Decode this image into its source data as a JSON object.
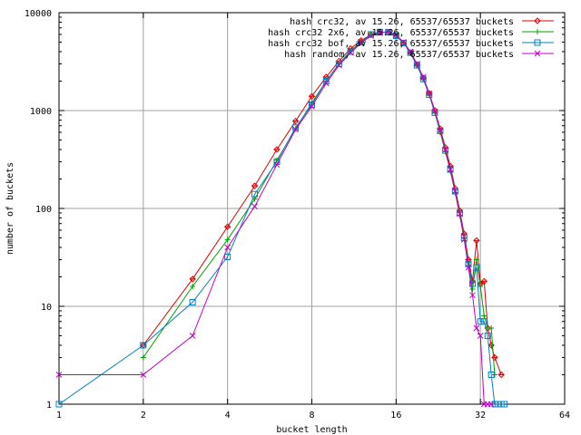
{
  "chart_data": {
    "type": "line",
    "xlabel": "bucket length",
    "ylabel": "number of buckets",
    "xscale": "log2",
    "yscale": "log10",
    "xlim": [
      1,
      64
    ],
    "ylim": [
      1,
      10000
    ],
    "grid": true,
    "legend_position": "top-right",
    "x_ticks": [
      "1",
      "2",
      "4",
      "8",
      "16",
      "32",
      "64"
    ],
    "y_ticks": [
      "1",
      "10",
      "100",
      "1000",
      "10000"
    ],
    "series": [
      {
        "name": "hash crc32, av 15.26, 65537/65537 buckets",
        "color": "#e00000",
        "marker": "plus-diamond",
        "points": [
          [
            2,
            4
          ],
          [
            3,
            19
          ],
          [
            4,
            65
          ],
          [
            5,
            170
          ],
          [
            6,
            400
          ],
          [
            7,
            780
          ],
          [
            8,
            1400
          ],
          [
            9,
            2200
          ],
          [
            10,
            3200
          ],
          [
            11,
            4300
          ],
          [
            12,
            5200
          ],
          [
            13,
            5950
          ],
          [
            14,
            6350
          ],
          [
            15,
            6300
          ],
          [
            16,
            5800
          ],
          [
            17,
            4900
          ],
          [
            18,
            3900
          ],
          [
            19,
            2950
          ],
          [
            20,
            2150
          ],
          [
            21,
            1500
          ],
          [
            22,
            1000
          ],
          [
            23,
            650
          ],
          [
            24,
            420
          ],
          [
            25,
            270
          ],
          [
            26,
            160
          ],
          [
            27,
            95
          ],
          [
            28,
            55
          ],
          [
            29,
            30
          ],
          [
            30,
            18
          ],
          [
            31,
            47
          ],
          [
            32,
            17
          ],
          [
            33,
            18
          ],
          [
            34,
            6
          ],
          [
            35,
            4
          ],
          [
            36,
            3
          ],
          [
            38,
            2
          ]
        ]
      },
      {
        "name": "hash crc32 2x6, av 15.26, 65537/65537 buckets",
        "color": "#00a000",
        "marker": "plus",
        "points": [
          [
            2,
            3
          ],
          [
            3,
            16
          ],
          [
            4,
            48
          ],
          [
            5,
            125
          ],
          [
            6,
            310
          ],
          [
            7,
            650
          ],
          [
            8,
            1200
          ],
          [
            9,
            2000
          ],
          [
            10,
            3000
          ],
          [
            11,
            4100
          ],
          [
            12,
            5000
          ],
          [
            13,
            5900
          ],
          [
            14,
            6300
          ],
          [
            15,
            6350
          ],
          [
            16,
            5850
          ],
          [
            17,
            4950
          ],
          [
            18,
            3850
          ],
          [
            19,
            2900
          ],
          [
            20,
            2100
          ],
          [
            21,
            1450
          ],
          [
            22,
            950
          ],
          [
            23,
            600
          ],
          [
            24,
            380
          ],
          [
            25,
            240
          ],
          [
            26,
            145
          ],
          [
            27,
            85
          ],
          [
            28,
            50
          ],
          [
            29,
            28
          ],
          [
            30,
            15
          ],
          [
            31,
            30
          ],
          [
            32,
            16
          ],
          [
            33,
            8
          ],
          [
            34,
            6
          ],
          [
            35,
            6
          ],
          [
            36,
            2
          ]
        ]
      },
      {
        "name": "hash crc32 bof, av 15.26, 65537/65537 buckets",
        "color": "#0080c0",
        "marker": "square",
        "points": [
          [
            1,
            1
          ],
          [
            2,
            4
          ],
          [
            3,
            11
          ],
          [
            4,
            32
          ],
          [
            5,
            140
          ],
          [
            6,
            300
          ],
          [
            7,
            670
          ],
          [
            8,
            1150
          ],
          [
            9,
            2000
          ],
          [
            10,
            3000
          ],
          [
            11,
            4000
          ],
          [
            12,
            5000
          ],
          [
            13,
            6000
          ],
          [
            14,
            6350
          ],
          [
            15,
            6300
          ],
          [
            16,
            5800
          ],
          [
            17,
            4900
          ],
          [
            18,
            3900
          ],
          [
            19,
            2900
          ],
          [
            20,
            2100
          ],
          [
            21,
            1450
          ],
          [
            22,
            950
          ],
          [
            23,
            620
          ],
          [
            24,
            390
          ],
          [
            25,
            250
          ],
          [
            26,
            150
          ],
          [
            27,
            90
          ],
          [
            28,
            50
          ],
          [
            29,
            27
          ],
          [
            30,
            17
          ],
          [
            31,
            25
          ],
          [
            32,
            7
          ],
          [
            33,
            7
          ],
          [
            34,
            5
          ],
          [
            35,
            2
          ],
          [
            36,
            1
          ],
          [
            37,
            1
          ],
          [
            38,
            1
          ],
          [
            39,
            1
          ]
        ]
      },
      {
        "name": "hash random, av 15.26, 65537/65537 buckets",
        "color": "#c000c0",
        "marker": "cross",
        "points": [
          [
            1,
            2
          ],
          [
            2,
            2
          ],
          [
            3,
            5
          ],
          [
            4,
            40
          ],
          [
            5,
            105
          ],
          [
            6,
            280
          ],
          [
            7,
            640
          ],
          [
            8,
            1100
          ],
          [
            9,
            1900
          ],
          [
            10,
            2900
          ],
          [
            11,
            3900
          ],
          [
            12,
            4900
          ],
          [
            13,
            5800
          ],
          [
            14,
            6200
          ],
          [
            15,
            6400
          ],
          [
            16,
            5900
          ],
          [
            17,
            5000
          ],
          [
            18,
            4000
          ],
          [
            19,
            3000
          ],
          [
            20,
            2200
          ],
          [
            21,
            1500
          ],
          [
            22,
            980
          ],
          [
            23,
            630
          ],
          [
            24,
            400
          ],
          [
            25,
            250
          ],
          [
            26,
            150
          ],
          [
            27,
            88
          ],
          [
            28,
            48
          ],
          [
            29,
            25
          ],
          [
            30,
            13
          ],
          [
            31,
            6
          ],
          [
            32,
            5
          ],
          [
            33,
            1
          ],
          [
            34,
            1
          ],
          [
            35,
            1
          ]
        ]
      }
    ]
  }
}
